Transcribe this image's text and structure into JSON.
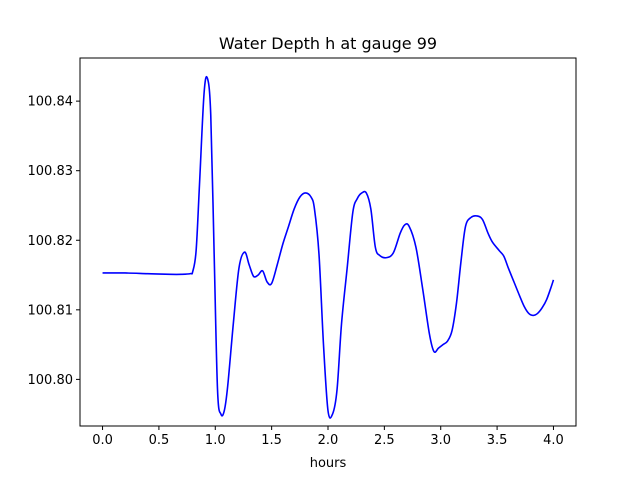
{
  "chart_data": {
    "type": "line",
    "title": "Water Depth h at gauge 99",
    "xlabel": "hours",
    "ylabel": "",
    "xlim": [
      -0.2,
      4.2
    ],
    "ylim": [
      100.7933,
      100.8462
    ],
    "grid": false,
    "xticks": [
      0.0,
      0.5,
      1.0,
      1.5,
      2.0,
      2.5,
      3.0,
      3.5,
      4.0
    ],
    "xtick_labels": [
      "0.0",
      "0.5",
      "1.0",
      "1.5",
      "2.0",
      "2.5",
      "3.0",
      "3.5",
      "4.0"
    ],
    "yticks": [
      100.8,
      100.81,
      100.82,
      100.83,
      100.84
    ],
    "ytick_labels": [
      "100.80",
      "100.81",
      "100.82",
      "100.83",
      "100.84"
    ],
    "series": [
      {
        "color": "#0000ff",
        "x": [
          0.0,
          0.2,
          0.4,
          0.6,
          0.7,
          0.78,
          0.8,
          0.83,
          0.86,
          0.9,
          0.93,
          0.96,
          0.99,
          1.02,
          1.05,
          1.08,
          1.11,
          1.16,
          1.21,
          1.26,
          1.3,
          1.34,
          1.38,
          1.42,
          1.46,
          1.5,
          1.55,
          1.6,
          1.65,
          1.7,
          1.75,
          1.8,
          1.85,
          1.88,
          1.92,
          1.96,
          2.0,
          2.04,
          2.08,
          2.12,
          2.17,
          2.22,
          2.26,
          2.3,
          2.34,
          2.38,
          2.42,
          2.46,
          2.52,
          2.58,
          2.64,
          2.68,
          2.72,
          2.78,
          2.84,
          2.9,
          2.94,
          2.98,
          3.02,
          3.06,
          3.1,
          3.14,
          3.18,
          3.22,
          3.27,
          3.32,
          3.37,
          3.42,
          3.46,
          3.52,
          3.56,
          3.6,
          3.65,
          3.7,
          3.74,
          3.78,
          3.82,
          3.86,
          3.9,
          3.94,
          3.98,
          4.0
        ],
        "y": [
          100.8153,
          100.8153,
          100.8152,
          100.8151,
          100.8151,
          100.8152,
          100.8155,
          100.8185,
          100.828,
          100.841,
          100.8433,
          100.838,
          100.818,
          100.7985,
          100.795,
          100.7955,
          100.799,
          100.808,
          100.816,
          100.8183,
          100.8165,
          100.8148,
          100.815,
          100.8156,
          100.814,
          100.8138,
          100.8165,
          100.8195,
          100.822,
          100.8245,
          100.8262,
          100.8268,
          100.8262,
          100.8245,
          100.818,
          100.805,
          100.7955,
          100.795,
          100.7985,
          100.808,
          100.816,
          100.824,
          100.826,
          100.8268,
          100.8268,
          100.8245,
          100.819,
          100.8178,
          100.8175,
          100.8182,
          100.821,
          100.8222,
          100.822,
          100.819,
          100.813,
          100.8065,
          100.804,
          100.8045,
          100.805,
          100.8055,
          100.807,
          100.811,
          100.817,
          100.822,
          100.8233,
          100.8235,
          100.823,
          100.821,
          100.8197,
          100.8185,
          100.8177,
          100.816,
          100.814,
          100.812,
          100.8105,
          100.8095,
          100.8092,
          100.8095,
          100.8103,
          100.8115,
          100.8133,
          100.8143
        ]
      }
    ]
  }
}
